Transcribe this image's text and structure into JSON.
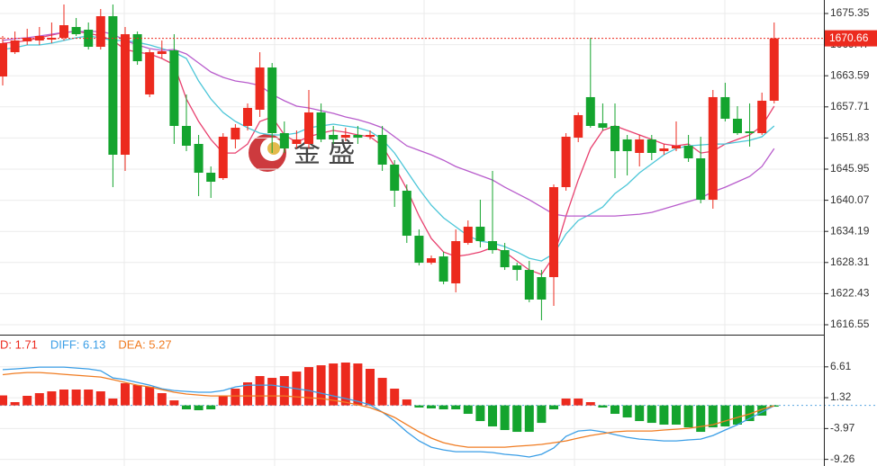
{
  "chart_data": [
    {
      "type": "candlestick",
      "open": [
        1663.45,
        1668.04,
        1670.08,
        1670.25,
        1670.42,
        1670.76,
        1672.8,
        1672.29,
        1669.06,
        1674.84,
        1648.67,
        1671.44,
        1660.06,
        1667.7,
        1668.38,
        1654.11,
        1650.71,
        1645.27,
        1644.25,
        1651.56,
        1654.11,
        1657.17,
        1665.15,
        1652.75,
        1650.71,
        1650.71,
        1656.66,
        1652.41,
        1651.9,
        1652.41,
        1652.07,
        1652.41,
        1646.8,
        1641.87,
        1633.37,
        1628.27,
        1629.46,
        1624.37,
        1632.01,
        1635.07,
        1632.35,
        1630.65,
        1627.76,
        1626.91,
        1625.55,
        1625.55,
        1642.55,
        1651.9,
        1659.55,
        1654.62,
        1654.11,
        1651.56,
        1649.01,
        1651.56,
        1649.35,
        1649.86,
        1650.37,
        1647.99,
        1640.17,
        1659.55,
        1655.47,
        1653.09,
        1652.75,
        1658.87
      ],
      "high": [
        1671.1,
        1671.95,
        1672.46,
        1672.8,
        1673.65,
        1677.05,
        1674.5,
        1673.65,
        1676.2,
        1677.05,
        1672.8,
        1671.95,
        1668.55,
        1670.25,
        1671.44,
        1660.06,
        1652.41,
        1646.46,
        1652.75,
        1654.45,
        1658.36,
        1668.04,
        1666.0,
        1654.96,
        1653.26,
        1660.9,
        1658.36,
        1654.11,
        1653.77,
        1654.11,
        1653.26,
        1654.11,
        1647.65,
        1643.06,
        1634.56,
        1629.63,
        1630.31,
        1634.56,
        1636.26,
        1640.17,
        1645.61,
        1632.01,
        1628.27,
        1628.61,
        1626.91,
        1643.06,
        1652.75,
        1656.66,
        1670.76,
        1658.36,
        1658.36,
        1652.41,
        1652.41,
        1652.41,
        1650.71,
        1654.96,
        1652.41,
        1652.07,
        1660.9,
        1662.26,
        1657.85,
        1658.36,
        1660.4,
        1673.65
      ],
      "low": [
        1661.75,
        1667.7,
        1669.4,
        1669.4,
        1669.74,
        1670.25,
        1671.1,
        1668.55,
        1668.55,
        1642.55,
        1645.61,
        1665.66,
        1659.55,
        1666.85,
        1650.71,
        1649.35,
        1640.85,
        1640.51,
        1643.91,
        1649.86,
        1653.26,
        1655.81,
        1649.01,
        1649.01,
        1649.86,
        1649.86,
        1651.05,
        1650.71,
        1651.22,
        1650.71,
        1651.56,
        1645.61,
        1638.81,
        1632.01,
        1627.76,
        1627.93,
        1624.2,
        1622.67,
        1631.67,
        1631.16,
        1629.97,
        1626.91,
        1624.88,
        1620.8,
        1617.4,
        1620.12,
        1641.87,
        1651.05,
        1653.77,
        1653.26,
        1644.25,
        1644.76,
        1646.46,
        1647.65,
        1648.67,
        1649.35,
        1647.31,
        1639.49,
        1638.47,
        1654.96,
        1652.41,
        1650.2,
        1652.41,
        1658.36
      ],
      "close": [
        1669.74,
        1670.25,
        1670.76,
        1671.1,
        1670.76,
        1673.14,
        1671.44,
        1669.06,
        1674.84,
        1648.67,
        1671.44,
        1666.34,
        1668.04,
        1668.21,
        1654.11,
        1650.37,
        1645.27,
        1643.57,
        1652.07,
        1653.77,
        1657.51,
        1665.15,
        1652.75,
        1649.86,
        1651.56,
        1656.66,
        1651.56,
        1651.56,
        1652.41,
        1651.9,
        1652.41,
        1646.8,
        1641.87,
        1633.37,
        1628.27,
        1629.12,
        1624.71,
        1632.35,
        1635.07,
        1632.35,
        1630.65,
        1627.42,
        1626.91,
        1621.31,
        1621.31,
        1642.55,
        1652.07,
        1656.15,
        1654.11,
        1653.77,
        1649.35,
        1649.35,
        1651.56,
        1649.01,
        1649.86,
        1650.37,
        1647.99,
        1640.17,
        1659.55,
        1655.47,
        1652.75,
        1652.75,
        1658.87,
        1670.66
      ],
      "up_color": "#ec2a1e",
      "down_color": "#14a42e",
      "lines": [
        {
          "color": "#e8416f",
          "values": [
            1669.74,
            1669.91,
            1670.25,
            1670.76,
            1671.27,
            1671.78,
            1671.95,
            1671.61,
            1671.1,
            1670.25,
            1668.55,
            1668.04,
            1667.7,
            1666.85,
            1665.66,
            1659.2,
            1654.95,
            1651.55,
            1649.0,
            1649.0,
            1650.7,
            1654.95,
            1655.8,
            1652.4,
            1651.04,
            1652.06,
            1652.74,
            1653.25,
            1652.91,
            1652.4,
            1652.06,
            1650.36,
            1646.45,
            1642.2,
            1637.1,
            1632.85,
            1630.3,
            1629.45,
            1629.79,
            1630.3,
            1631.15,
            1630.3,
            1628.6,
            1626.9,
            1626.05,
            1629.45,
            1637.1,
            1643.9,
            1649.85,
            1653.25,
            1654.1,
            1653.25,
            1652.4,
            1651.55,
            1650.7,
            1650.36,
            1650.7,
            1649.0,
            1649.34,
            1650.7,
            1651.55,
            1652.4,
            1654.1,
            1657.84
          ]
        },
        {
          "color": "#4cc6d8",
          "values": [
            1668.55,
            1668.89,
            1669.4,
            1669.4,
            1669.74,
            1670.25,
            1670.76,
            1671.1,
            1670.76,
            1670.25,
            1670.25,
            1669.91,
            1669.4,
            1668.72,
            1668.04,
            1666.85,
            1662.6,
            1659.2,
            1656.65,
            1654.95,
            1653.76,
            1652.74,
            1652.4,
            1652.4,
            1652.74,
            1653.76,
            1654.1,
            1654.44,
            1654.1,
            1653.76,
            1653.08,
            1651.55,
            1649.0,
            1645.6,
            1642.2,
            1639.14,
            1636.76,
            1635.06,
            1633.36,
            1632.34,
            1632.0,
            1631.32,
            1630.3,
            1629.11,
            1628.6,
            1629.96,
            1633.7,
            1636.25,
            1637.44,
            1638.8,
            1641.35,
            1643.05,
            1645.26,
            1646.96,
            1648.66,
            1649.85,
            1650.36,
            1650.53,
            1650.7,
            1650.7,
            1651.04,
            1651.38,
            1652.06,
            1654.1
          ]
        },
        {
          "color": "#b85ccc",
          "values": [
            1670.25,
            1670.59,
            1670.76,
            1671.1,
            1671.44,
            1671.78,
            1671.95,
            1671.95,
            1671.95,
            1671.44,
            1670.25,
            1669.4,
            1668.72,
            1668.38,
            1668.55,
            1667.7,
            1666.0,
            1664.3,
            1663.28,
            1662.6,
            1662.26,
            1661.75,
            1660.05,
            1658.86,
            1657.84,
            1657.5,
            1656.99,
            1656.48,
            1655.8,
            1655.29,
            1654.61,
            1653.76,
            1652.06,
            1650.36,
            1649.51,
            1648.66,
            1647.64,
            1646.45,
            1645.6,
            1644.75,
            1643.9,
            1642.54,
            1641.35,
            1640.16,
            1638.8,
            1637.44,
            1637.1,
            1637.1,
            1637.1,
            1637.1,
            1637.1,
            1637.27,
            1637.44,
            1637.78,
            1638.46,
            1639.14,
            1639.82,
            1640.5,
            1641.69,
            1642.54,
            1643.56,
            1644.58,
            1646.45,
            1649.85
          ]
        }
      ],
      "last_price": {
        "value": 1670.66,
        "label": "1670.66"
      },
      "last_price_color": "#ec2a1e",
      "ylim": [
        1614.68,
        1677.9
      ],
      "yticks": [
        1675.35,
        1669.47,
        1663.59,
        1657.71,
        1651.83,
        1645.95,
        1640.07,
        1634.19,
        1628.31,
        1622.43,
        1616.55
      ],
      "grid": true,
      "watermark": "金 盛"
    },
    {
      "type": "macd",
      "values": [
        1.71,
        0.56,
        1.64,
        2.1,
        2.41,
        2.72,
        2.72,
        2.72,
        2.41,
        1.17,
        3.8,
        3.49,
        3.18,
        2.1,
        0.86,
        -0.68,
        -0.83,
        -0.68,
        1.64,
        2.87,
        3.95,
        5.03,
        4.72,
        5.03,
        5.8,
        6.57,
        6.88,
        7.19,
        7.35,
        7.19,
        6.27,
        4.72,
        2.87,
        1.02,
        -0.37,
        -0.52,
        -0.68,
        -0.68,
        -1.45,
        -2.69,
        -3.61,
        -4.23,
        -4.54,
        -4.54,
        -3.0,
        -0.68,
        1.17,
        1.17,
        0.56,
        -0.37,
        -1.45,
        -2.07,
        -2.69,
        -3.0,
        -3.3,
        -3.3,
        -3.77,
        -4.54,
        -3.77,
        -3.61,
        -3.3,
        -2.69,
        -1.76,
        -0.22
      ],
      "up_color": "#ec2a1e",
      "down_color": "#14a42e",
      "series": [
        {
          "color": "#3a9ee6",
          "values": [
            6.13,
            6.26,
            6.41,
            6.57,
            6.57,
            6.57,
            6.41,
            6.26,
            5.95,
            4.71,
            4.41,
            3.94,
            3.48,
            2.86,
            2.55,
            2.4,
            2.25,
            2.25,
            2.55,
            3.17,
            3.48,
            3.48,
            3.48,
            3.17,
            2.86,
            2.55,
            2.09,
            1.63,
            1.17,
            0.7,
            0.09,
            -1.15,
            -2.69,
            -4.54,
            -6.09,
            -7.17,
            -7.63,
            -7.94,
            -7.94,
            -7.94,
            -8.09,
            -8.4,
            -8.56,
            -8.86,
            -8.4,
            -7.32,
            -5.31,
            -4.39,
            -4.23,
            -4.54,
            -5.01,
            -5.47,
            -5.78,
            -5.93,
            -6.09,
            -6.09,
            -5.93,
            -5.78,
            -5.16,
            -4.23,
            -3.31,
            -2.23,
            -1.15,
            -0.07
          ]
        },
        {
          "color": "#f07c22",
          "values": [
            5.27,
            5.49,
            5.64,
            5.64,
            5.49,
            5.33,
            5.18,
            5.02,
            4.87,
            4.41,
            3.94,
            3.48,
            3.17,
            2.71,
            2.25,
            1.94,
            1.78,
            1.63,
            1.63,
            1.63,
            1.63,
            1.63,
            1.63,
            1.63,
            1.47,
            1.32,
            1.17,
            0.86,
            0.55,
            0.09,
            -0.38,
            -1.15,
            -2.07,
            -3.31,
            -4.54,
            -5.62,
            -6.4,
            -6.86,
            -7.17,
            -7.17,
            -7.17,
            -7.17,
            -7.01,
            -6.86,
            -6.7,
            -6.4,
            -6.09,
            -5.62,
            -5.16,
            -4.85,
            -4.54,
            -4.39,
            -4.39,
            -4.39,
            -4.23,
            -4.08,
            -3.93,
            -3.62,
            -3.31,
            -2.69,
            -2.07,
            -1.46,
            -0.68,
            -0.07
          ]
        }
      ],
      "legend": [
        {
          "text": "D: 1.71",
          "color": "#ec2a1e"
        },
        {
          "text": "DIFF: 6.13",
          "color": "#3a9ee6"
        },
        {
          "text": "DEA: 5.27",
          "color": "#f07c22"
        }
      ],
      "ylim": [
        -10.4,
        11.98
      ],
      "yticks": [
        6.61,
        1.32,
        -3.97,
        -9.26
      ],
      "grid": true
    }
  ]
}
